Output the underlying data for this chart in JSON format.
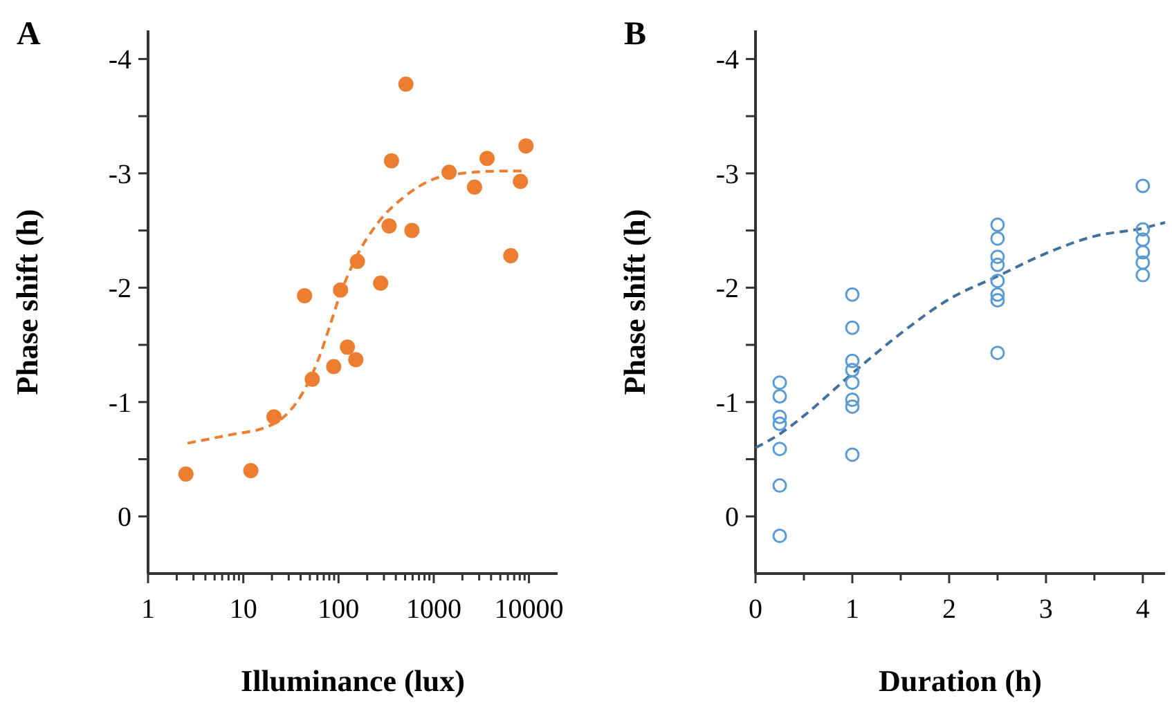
{
  "chart_data": [
    {
      "type": "scatter",
      "title": "A",
      "xlabel": "Illuminance (lux)",
      "ylabel": "Phase shift (h)",
      "log": "x",
      "xlim": [
        1,
        20000
      ],
      "ylim": [
        0.5,
        -4.25
      ],
      "xticks": [
        1,
        {
          "value": 2,
          "label": null
        },
        {
          "value": 3,
          "label": null
        },
        {
          "value": 4,
          "label": null
        },
        {
          "value": 5,
          "label": null
        },
        {
          "value": 6,
          "label": null
        },
        {
          "value": 7,
          "label": null
        },
        {
          "value": 8,
          "label": null
        },
        {
          "value": 9,
          "label": null
        },
        10,
        {
          "value": 20,
          "label": null
        },
        {
          "value": 30,
          "label": null
        },
        {
          "value": 40,
          "label": null
        },
        {
          "value": 50,
          "label": null
        },
        {
          "value": 60,
          "label": null
        },
        {
          "value": 70,
          "label": null
        },
        {
          "value": 80,
          "label": null
        },
        {
          "value": 90,
          "label": null
        },
        100,
        {
          "value": 200,
          "label": null
        },
        {
          "value": 300,
          "label": null
        },
        {
          "value": 400,
          "label": null
        },
        {
          "value": 500,
          "label": null
        },
        {
          "value": 600,
          "label": null
        },
        {
          "value": 700,
          "label": null
        },
        {
          "value": 800,
          "label": null
        },
        {
          "value": 900,
          "label": null
        },
        1000,
        {
          "value": 2000,
          "label": null
        },
        {
          "value": 3000,
          "label": null
        },
        {
          "value": 4000,
          "label": null
        },
        {
          "value": 5000,
          "label": null
        },
        {
          "value": 6000,
          "label": null
        },
        {
          "value": 7000,
          "label": null
        },
        {
          "value": 8000,
          "label": null
        },
        {
          "value": 9000,
          "label": null
        },
        10000
      ],
      "yticks": [
        -4,
        {
          "value": -3.5,
          "label": null
        },
        -3,
        {
          "value": -2.5,
          "label": null
        },
        -2,
        {
          "value": -1.5,
          "label": null
        },
        -1,
        {
          "value": -0.5,
          "label": null
        },
        0
      ],
      "grid": false,
      "series": [
        {
          "marker": "circle",
          "color": "#ed7d31",
          "x": [
            2.5,
            12,
            21,
            44,
            53,
            89,
            105,
            124,
            152,
            158,
            277,
            340,
            360,
            510,
            590,
            1450,
            2680,
            3630,
            6440,
            8130,
            9300
          ],
          "values": [
            -0.37,
            -0.4,
            -0.87,
            -1.93,
            -1.2,
            -1.31,
            -1.98,
            -1.48,
            -1.37,
            -2.23,
            -2.04,
            -2.54,
            -3.11,
            -3.78,
            -2.5,
            -3.01,
            -2.88,
            -3.13,
            -2.28,
            -2.93,
            -3.24
          ]
        },
        {
          "type": "line",
          "line_style": "dashed",
          "color": "#ed7d31",
          "x": [
            2.6,
            8,
            16,
            25,
            40,
            60,
            80,
            100,
            150,
            250,
            500,
            1000,
            2000,
            5000,
            9000
          ],
          "values": [
            -0.64,
            -0.72,
            -0.77,
            -0.85,
            -1.05,
            -1.35,
            -1.65,
            -1.9,
            -2.25,
            -2.55,
            -2.8,
            -2.95,
            -3.0,
            -3.02,
            -3.02
          ]
        }
      ]
    },
    {
      "type": "scatter",
      "title": "B",
      "xlabel": "Duration (h)",
      "ylabel": "Phase shift (h)",
      "xlim": [
        0,
        4.23
      ],
      "ylim": [
        0.5,
        -4.25
      ],
      "xticks": [
        0,
        {
          "value": 0.5,
          "label": null
        },
        1,
        {
          "value": 1.5,
          "label": null
        },
        2,
        {
          "value": 2.5,
          "label": null
        },
        3,
        {
          "value": 3.5,
          "label": null
        },
        4
      ],
      "yticks": [
        -4,
        {
          "value": -3.5,
          "label": null
        },
        -3,
        {
          "value": -2.5,
          "label": null
        },
        -2,
        {
          "value": -1.5,
          "label": null
        },
        -1,
        {
          "value": -0.5,
          "label": null
        },
        0
      ],
      "grid": false,
      "series": [
        {
          "marker": "circle",
          "color": "#5b9bd5",
          "x": [
            0.25,
            0.25,
            0.25,
            0.25,
            0.25,
            0.25,
            0.25,
            1,
            1,
            1,
            1,
            1,
            1,
            1,
            1,
            2.5,
            2.5,
            2.5,
            2.5,
            2.5,
            2.5,
            2.5,
            2.5,
            4,
            4,
            4,
            4,
            4,
            4
          ],
          "values": [
            -1.17,
            -1.05,
            -0.87,
            -0.81,
            -0.59,
            -0.27,
            0.17,
            -1.94,
            -1.65,
            -1.36,
            -1.28,
            -1.17,
            -1.02,
            -0.96,
            -0.54,
            -2.55,
            -2.43,
            -2.27,
            -2.2,
            -2.06,
            -1.94,
            -1.89,
            -1.43,
            -2.89,
            -2.51,
            -2.42,
            -2.31,
            -2.22,
            -2.11
          ]
        },
        {
          "type": "line",
          "line_style": "dashed",
          "color": "#41719c",
          "x": [
            0,
            0.25,
            0.5,
            1,
            1.5,
            2,
            2.5,
            3,
            3.5,
            4,
            4.23
          ],
          "values": [
            -0.6,
            -0.72,
            -0.88,
            -1.25,
            -1.6,
            -1.9,
            -2.1,
            -2.3,
            -2.45,
            -2.52,
            -2.57
          ]
        }
      ]
    }
  ]
}
